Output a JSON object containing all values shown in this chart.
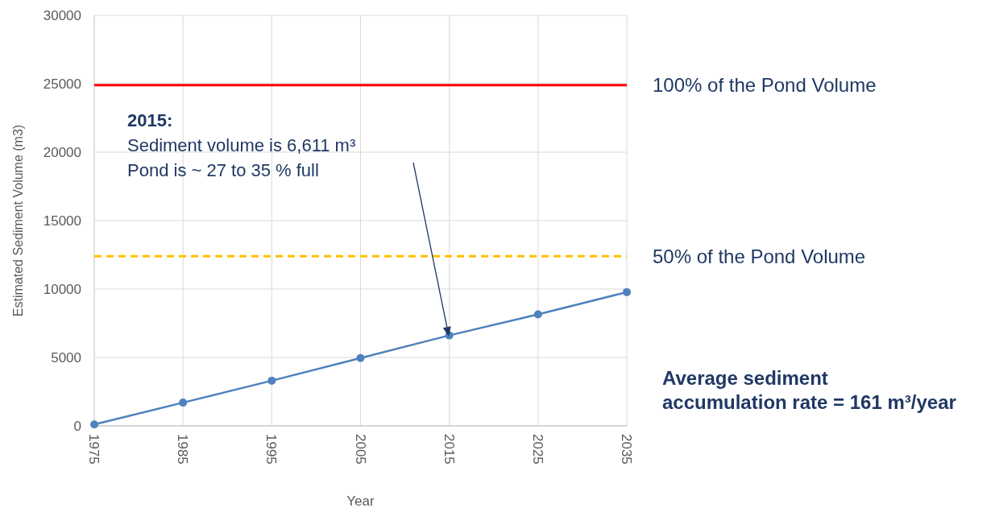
{
  "chart_data": {
    "type": "line",
    "xlabel": "Year",
    "ylabel": "Estimated Sediment Volume (m3)",
    "x": [
      1975,
      1985,
      1995,
      2005,
      2015,
      2025,
      2035
    ],
    "series": [
      {
        "color": "#4f81bd",
        "values": [
          100,
          1700,
          3300,
          4960,
          6611,
          8150,
          9770
        ]
      }
    ],
    "xlim": [
      1975,
      2035
    ],
    "xticks": [
      1975,
      1985,
      1995,
      2005,
      2015,
      2025,
      2035
    ],
    "ylim": [
      0,
      30000
    ],
    "yticks": [
      0,
      5000,
      10000,
      15000,
      20000,
      25000,
      30000
    ],
    "ref_lines": [
      {
        "axis": "y",
        "value": 24900,
        "label": "100% of the Pond Volume",
        "color": "#ff0000",
        "line_style": "solid"
      },
      {
        "axis": "y",
        "value": 12400,
        "label": "50% of the Pond Volume",
        "color": "#ffc000",
        "line_style": "dashed"
      }
    ],
    "annotations": [
      "2015:\nSediment volume is 6,611 m³\nPond is ~ 27 to 35 % full",
      "Average sediment\naccumulation rate = 161 m³/year"
    ],
    "grid": true,
    "marker": "circle",
    "line_style": "solid"
  }
}
